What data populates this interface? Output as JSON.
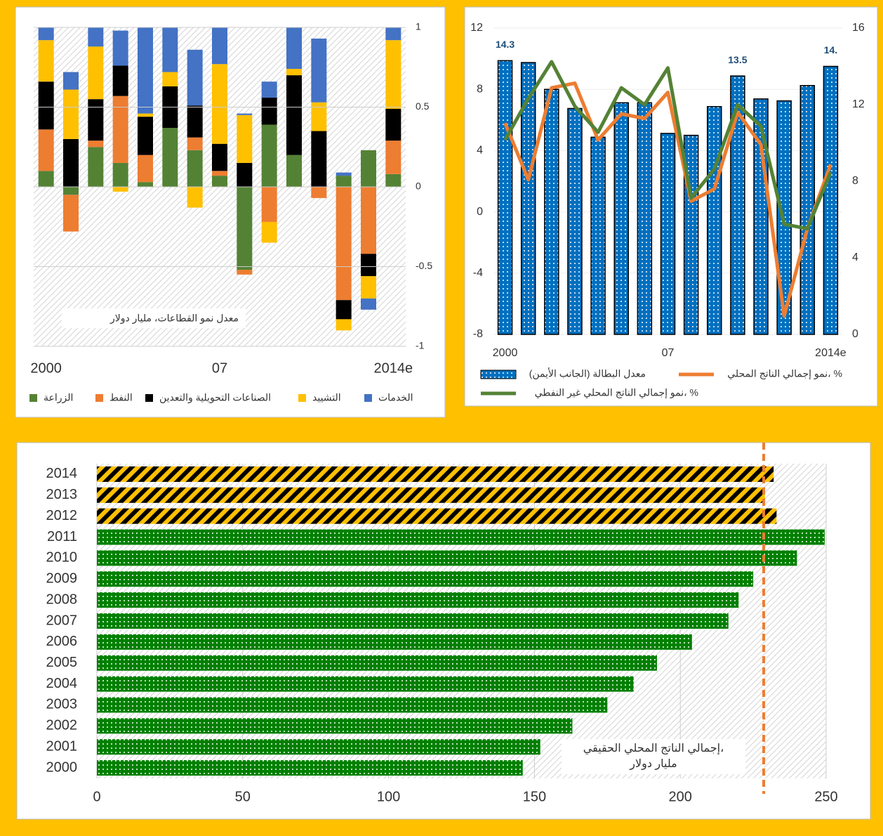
{
  "chart_data": [
    {
      "type": "stacked_bar",
      "categories": [
        "2000",
        null,
        null,
        null,
        null,
        null,
        null,
        "07",
        null,
        null,
        null,
        null,
        null,
        null,
        "2014e"
      ],
      "annotation": "معدل نمو القطاعات، مليار دولار",
      "ylim": [
        -1,
        1
      ],
      "yticks": [
        -1,
        -0.5,
        0,
        0.5,
        1
      ],
      "series": [
        {
          "name": "الزراعة",
          "color": "#548235",
          "values": [
            0.1,
            -0.05,
            0.25,
            0.15,
            0.03,
            0.37,
            0.23,
            0.07,
            -0.52,
            0.39,
            0.2,
            0,
            0.07,
            0.23,
            0.08
          ]
        },
        {
          "name": "النفط",
          "color": "#ed7d31",
          "values": [
            0.26,
            -0.23,
            0.04,
            0.42,
            0.17,
            0,
            0.08,
            0.03,
            -0.03,
            -0.22,
            0,
            -0.07,
            -0.71,
            -0.42,
            0.21
          ]
        },
        {
          "name": "الصناعات التحويلية والتعدين",
          "color": "#000000",
          "values": [
            0.3,
            0.3,
            0.26,
            0.19,
            0.24,
            0.26,
            0.2,
            0.17,
            0.15,
            0.17,
            0.5,
            0.35,
            -0.12,
            -0.14,
            0.2
          ]
        },
        {
          "name": "التشييد",
          "color": "#ffc000",
          "values": [
            0.26,
            0.31,
            0.33,
            -0.03,
            0.02,
            0.09,
            -0.13,
            0.5,
            0.3,
            -0.13,
            0.04,
            0.18,
            -0.07,
            -0.14,
            0.43
          ]
        },
        {
          "name": "الخدمات",
          "color": "#4472c4",
          "values": [
            0.08,
            0.11,
            0.13,
            0.22,
            0.55,
            0.28,
            0.35,
            0.24,
            0.01,
            0.1,
            0.27,
            0.4,
            0.02,
            -0.07,
            0.08
          ]
        }
      ]
    },
    {
      "type": "bar_line",
      "categories": [
        "2000",
        null,
        null,
        null,
        null,
        null,
        null,
        "07",
        null,
        null,
        null,
        null,
        null,
        null,
        "2014e"
      ],
      "ylim": [
        -8,
        12
      ],
      "yticks": [
        -8,
        -4,
        0,
        4,
        8,
        12
      ],
      "y2lim": [
        0,
        16
      ],
      "y2ticks": [
        0,
        4,
        8,
        12,
        16
      ],
      "series": [
        {
          "name": "معدل البطالة (الجانب الأيمن)",
          "type": "bar",
          "axis": "y2",
          "color": "#0070c0",
          "values": [
            14.3,
            14.2,
            12.8,
            11.8,
            10.3,
            12.1,
            12.1,
            10.5,
            10.4,
            11.9,
            13.5,
            12.3,
            12.2,
            13.0,
            14.0
          ],
          "value_labels": [
            "14.3",
            null,
            null,
            null,
            null,
            null,
            null,
            null,
            null,
            null,
            "13.5",
            null,
            null,
            null,
            "14."
          ]
        },
        {
          "name": "نمو إجمالي الناتج المحلي، %",
          "type": "line",
          "color": "#ed7d31",
          "values": [
            5.8,
            2.1,
            8.1,
            8.4,
            4.7,
            6.4,
            6.1,
            7.8,
            0.7,
            1.5,
            6.5,
            4.4,
            -6.8,
            -1.1,
            3.1
          ]
        },
        {
          "name": "نمو إجمالي الناتج المحلي غير النفطي، %",
          "type": "line",
          "color": "#548235",
          "values": [
            4.7,
            7.4,
            9.8,
            6.9,
            5.2,
            8.1,
            7.0,
            9.4,
            0.9,
            2.8,
            7.0,
            5.6,
            -0.8,
            -1.1,
            2.6
          ]
        }
      ]
    },
    {
      "type": "hbar",
      "categories": [
        "2000",
        "2001",
        "2002",
        "2003",
        "2004",
        "2005",
        "2006",
        "2007",
        "2008",
        "2009",
        "2010",
        "2011",
        "2012",
        "2013",
        "2014"
      ],
      "values": [
        146,
        152,
        163,
        175,
        184,
        192,
        204,
        216.5,
        220,
        225,
        240,
        249.5,
        233,
        229,
        232
      ],
      "colors": [
        "#008000",
        "#008000",
        "#008000",
        "#008000",
        "#008000",
        "#008000",
        "#008000",
        "#008000",
        "#008000",
        "#008000",
        "#008000",
        "#008000",
        "#ffc000",
        "#ffc000",
        "#ffc000"
      ],
      "fills": [
        "dots",
        "dots",
        "dots",
        "dots",
        "dots",
        "dots",
        "dots",
        "dots",
        "dots",
        "dots",
        "dots",
        "dots",
        "stripes",
        "stripes",
        "stripes"
      ],
      "annotation": [
        "إجمالي الناتج المحلي الحقيقي،",
        "مليار دولار"
      ],
      "xlim": [
        0,
        250
      ],
      "xticks": [
        0,
        50,
        100,
        150,
        200,
        250
      ],
      "reference_line": {
        "value": 228.6,
        "color": "#ed7d31"
      }
    }
  ]
}
